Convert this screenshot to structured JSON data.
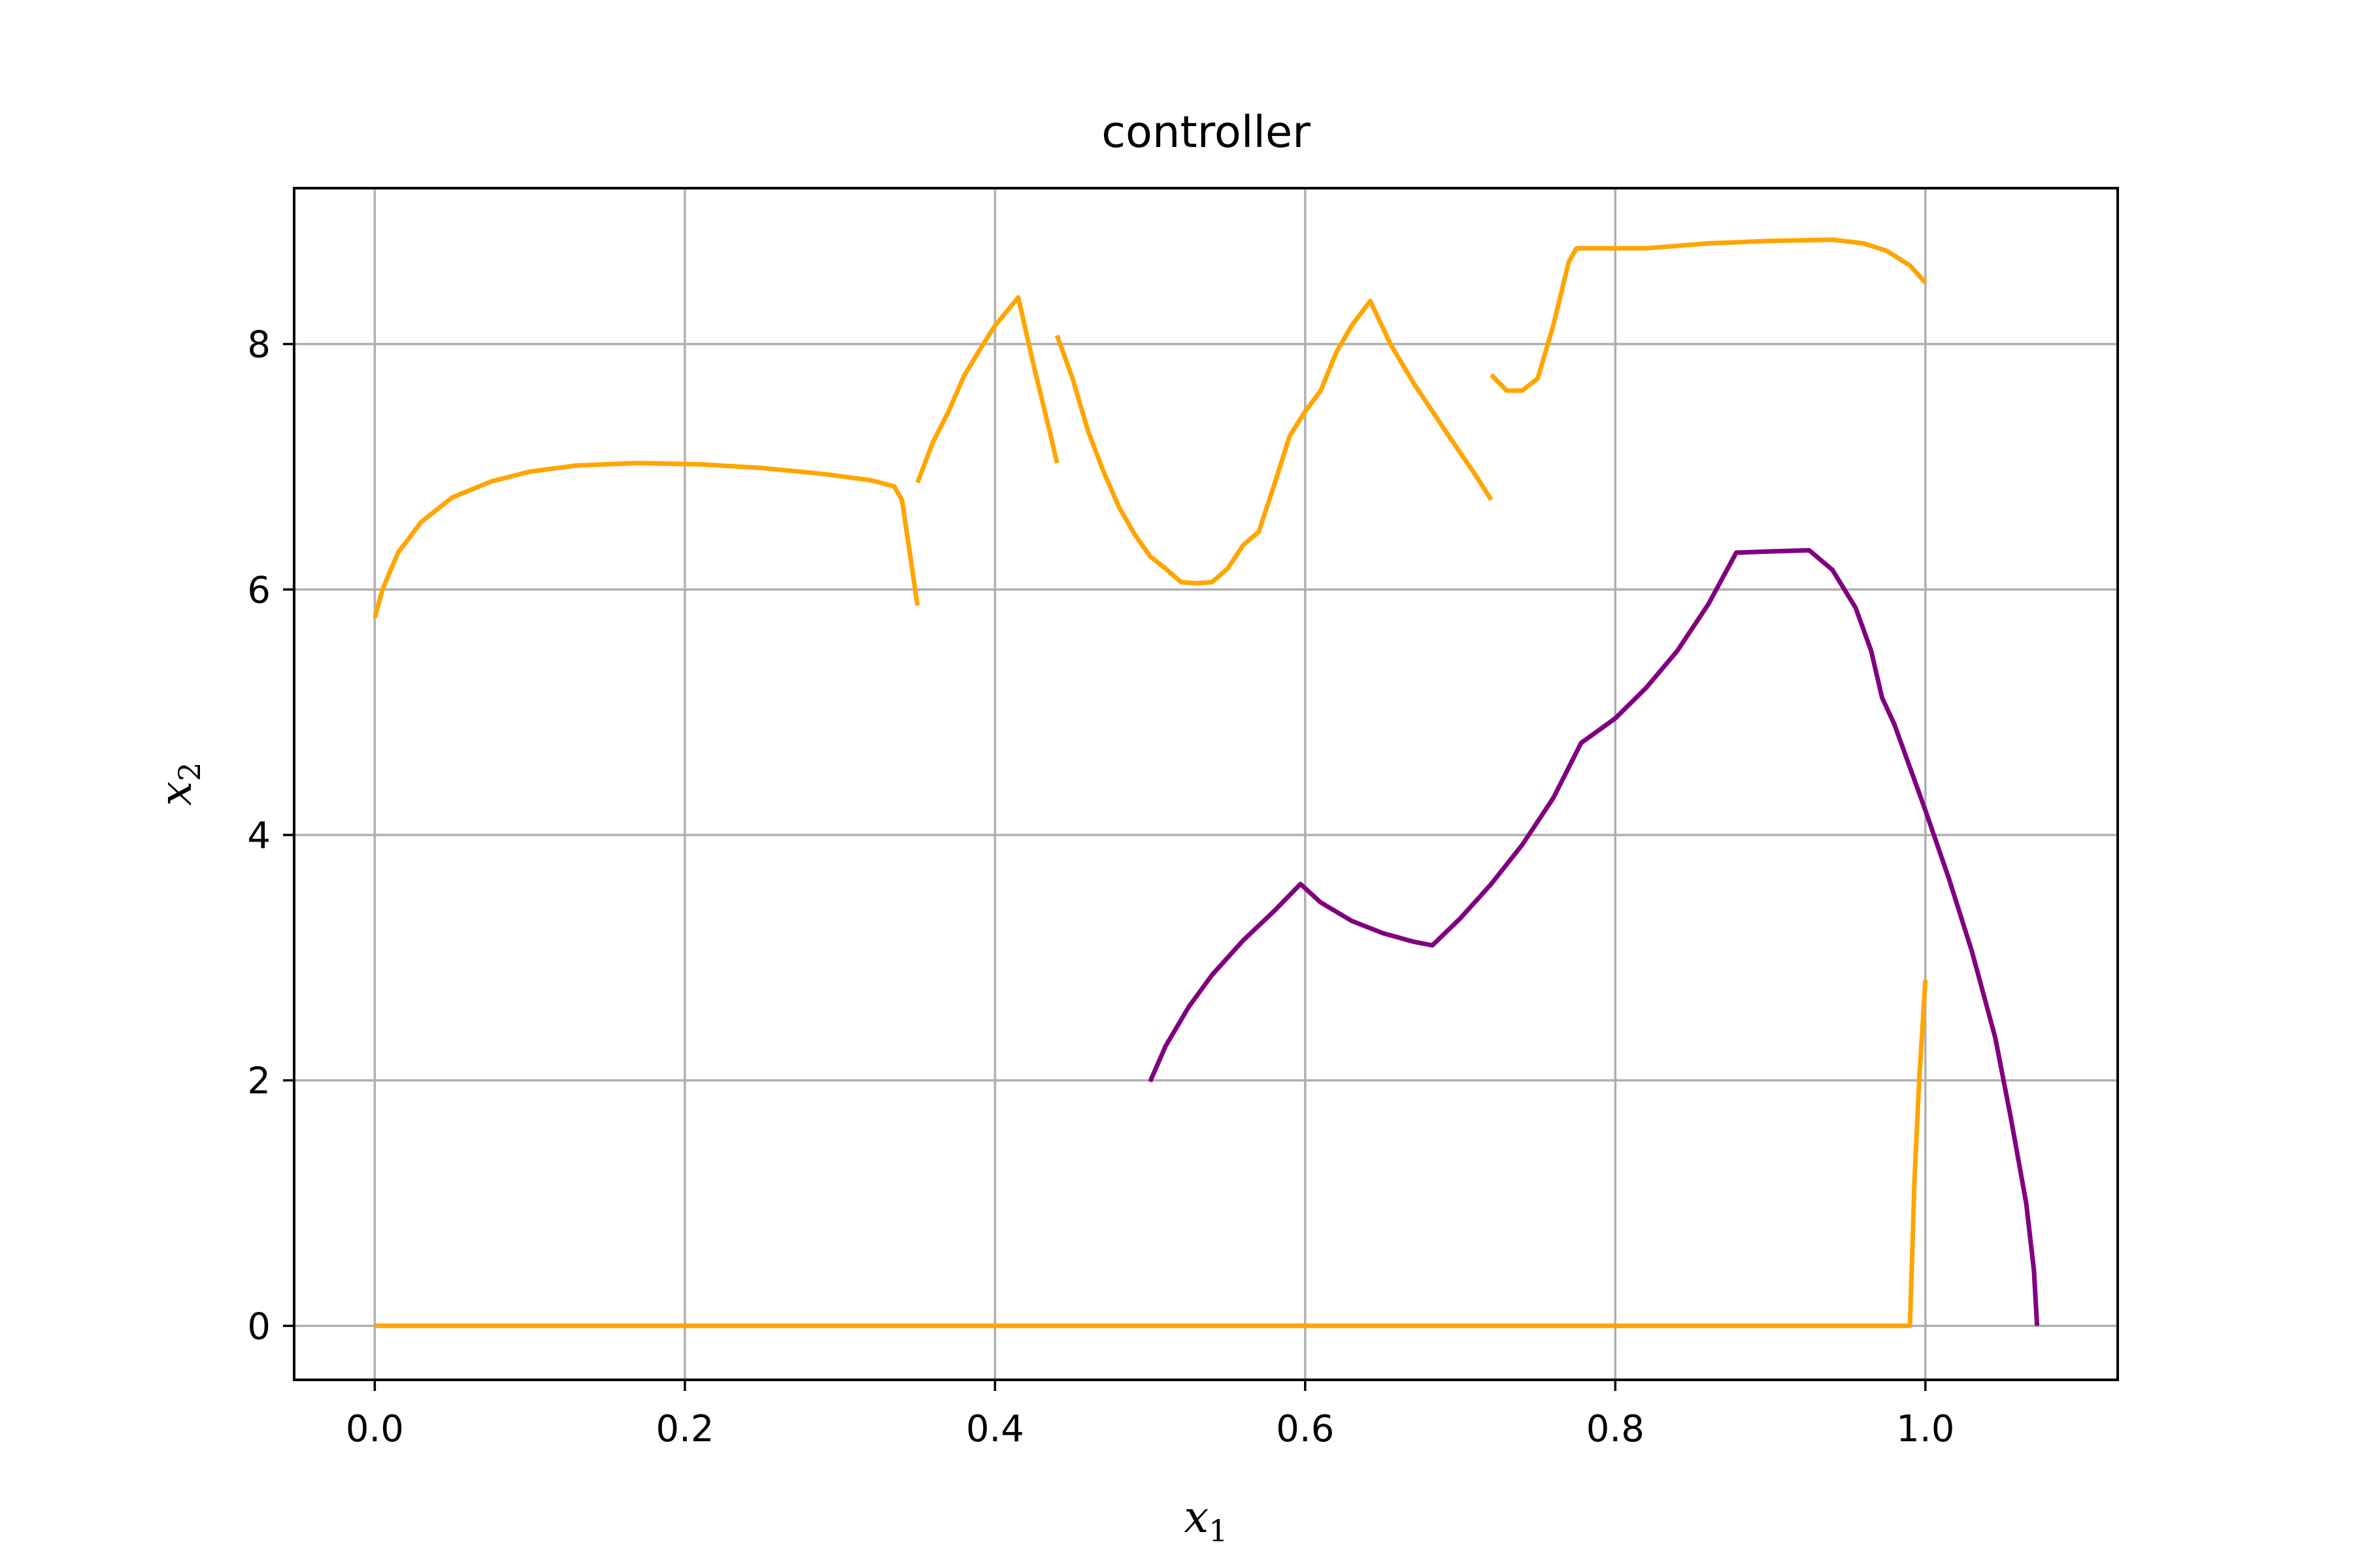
{
  "chart_data": {
    "type": "line",
    "title": "controller",
    "xlabel": {
      "base": "x",
      "sub": "1"
    },
    "ylabel": {
      "base": "x",
      "sub": "2"
    },
    "xlim": [
      -0.052,
      1.124
    ],
    "ylim": [
      -0.44,
      9.27
    ],
    "xticks": [
      "0.0",
      "0.2",
      "0.4",
      "0.6",
      "0.8",
      "1.0"
    ],
    "xtick_values": [
      0.0,
      0.2,
      0.4,
      0.6,
      0.8,
      1.0
    ],
    "yticks": [
      "0",
      "2",
      "4",
      "6",
      "8"
    ],
    "ytick_values": [
      0,
      2,
      4,
      6,
      8
    ],
    "grid": true,
    "colors": {
      "orange": "#ffa500",
      "purple": "#800080",
      "grid": "#b0b0b0"
    },
    "series": [
      {
        "color": "#ffa500",
        "points": [
          [
            0.0,
            5.77
          ],
          [
            0.005,
            6.0
          ],
          [
            0.015,
            6.3
          ],
          [
            0.03,
            6.55
          ],
          [
            0.05,
            6.75
          ],
          [
            0.075,
            6.88
          ],
          [
            0.1,
            6.96
          ],
          [
            0.13,
            7.01
          ],
          [
            0.17,
            7.03
          ],
          [
            0.21,
            7.02
          ],
          [
            0.25,
            6.99
          ],
          [
            0.29,
            6.94
          ],
          [
            0.32,
            6.89
          ],
          [
            0.335,
            6.84
          ],
          [
            0.34,
            6.73
          ],
          [
            0.345,
            6.3
          ],
          [
            0.35,
            5.87
          ]
        ]
      },
      {
        "color": "#ffa500",
        "points": [
          [
            0.35,
            6.87
          ],
          [
            0.36,
            7.2
          ],
          [
            0.37,
            7.45
          ],
          [
            0.38,
            7.74
          ],
          [
            0.39,
            7.95
          ],
          [
            0.4,
            8.15
          ],
          [
            0.415,
            8.38
          ],
          [
            0.425,
            7.82
          ],
          [
            0.435,
            7.3
          ],
          [
            0.44,
            7.03
          ]
        ]
      },
      {
        "color": "#ffa500",
        "points": [
          [
            0.44,
            8.07
          ],
          [
            0.45,
            7.72
          ],
          [
            0.46,
            7.29
          ],
          [
            0.47,
            6.96
          ],
          [
            0.48,
            6.67
          ],
          [
            0.49,
            6.45
          ],
          [
            0.5,
            6.27
          ],
          [
            0.51,
            6.17
          ],
          [
            0.52,
            6.06
          ],
          [
            0.53,
            6.05
          ],
          [
            0.54,
            6.06
          ],
          [
            0.55,
            6.17
          ],
          [
            0.56,
            6.36
          ],
          [
            0.57,
            6.47
          ],
          [
            0.58,
            6.85
          ],
          [
            0.59,
            7.25
          ],
          [
            0.6,
            7.45
          ],
          [
            0.61,
            7.62
          ],
          [
            0.62,
            7.93
          ],
          [
            0.63,
            8.15
          ],
          [
            0.642,
            8.35
          ],
          [
            0.655,
            8.0
          ],
          [
            0.67,
            7.68
          ],
          [
            0.69,
            7.3
          ],
          [
            0.71,
            6.93
          ],
          [
            0.72,
            6.73
          ]
        ]
      },
      {
        "color": "#ffa500",
        "points": [
          [
            0.72,
            7.75
          ],
          [
            0.73,
            7.62
          ],
          [
            0.74,
            7.62
          ],
          [
            0.75,
            7.72
          ],
          [
            0.76,
            8.15
          ],
          [
            0.77,
            8.67
          ],
          [
            0.775,
            8.78
          ],
          [
            0.82,
            8.78
          ],
          [
            0.86,
            8.82
          ],
          [
            0.9,
            8.84
          ],
          [
            0.94,
            8.85
          ],
          [
            0.96,
            8.82
          ],
          [
            0.975,
            8.76
          ],
          [
            0.99,
            8.64
          ],
          [
            1.0,
            8.5
          ]
        ]
      },
      {
        "color": "#ffa500",
        "points": [
          [
            0.0,
            0.0
          ],
          [
            0.99,
            0.0
          ],
          [
            0.991,
            0.4
          ],
          [
            0.993,
            1.2
          ],
          [
            0.996,
            2.0
          ],
          [
            1.0,
            2.82
          ]
        ]
      },
      {
        "color": "#800080",
        "points": [
          [
            0.5,
            1.99
          ],
          [
            0.51,
            2.28
          ],
          [
            0.525,
            2.6
          ],
          [
            0.54,
            2.86
          ],
          [
            0.56,
            3.14
          ],
          [
            0.58,
            3.38
          ],
          [
            0.597,
            3.6
          ],
          [
            0.61,
            3.45
          ],
          [
            0.63,
            3.3
          ],
          [
            0.65,
            3.2
          ],
          [
            0.67,
            3.13
          ],
          [
            0.682,
            3.1
          ],
          [
            0.7,
            3.32
          ],
          [
            0.72,
            3.6
          ],
          [
            0.74,
            3.92
          ],
          [
            0.76,
            4.3
          ],
          [
            0.778,
            4.75
          ],
          [
            0.8,
            4.95
          ],
          [
            0.82,
            5.2
          ],
          [
            0.84,
            5.5
          ],
          [
            0.86,
            5.88
          ],
          [
            0.878,
            6.3
          ],
          [
            0.9,
            6.31
          ],
          [
            0.925,
            6.32
          ],
          [
            0.94,
            6.16
          ],
          [
            0.955,
            5.85
          ],
          [
            0.965,
            5.5
          ],
          [
            0.972,
            5.12
          ],
          [
            0.98,
            4.9
          ],
          [
            0.99,
            4.55
          ],
          [
            1.0,
            4.2
          ],
          [
            1.015,
            3.65
          ],
          [
            1.03,
            3.05
          ],
          [
            1.045,
            2.35
          ],
          [
            1.055,
            1.7
          ],
          [
            1.065,
            1.0
          ],
          [
            1.07,
            0.45
          ],
          [
            1.072,
            0.0
          ]
        ]
      }
    ]
  }
}
